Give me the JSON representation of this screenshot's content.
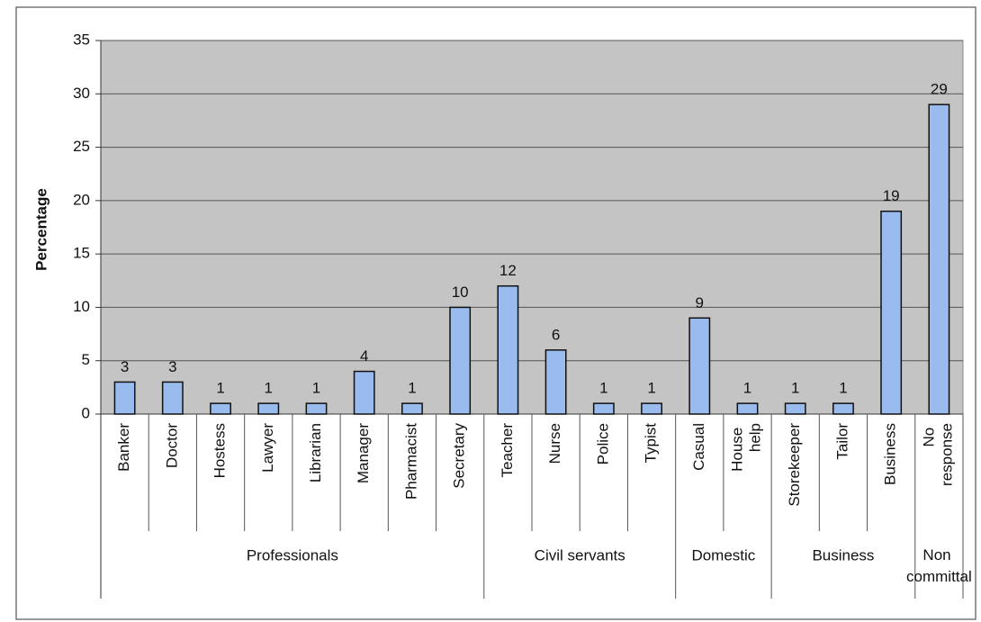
{
  "chart_data": {
    "type": "bar",
    "ylabel": "Percentage",
    "color": "#99bbee",
    "ylim": [
      0,
      35
    ],
    "yticks": [
      0,
      5,
      10,
      15,
      20,
      25,
      30,
      35
    ],
    "grid": true,
    "groups": [
      {
        "name": "Professionals",
        "categories": [
          "Banker",
          "Doctor",
          "Hostess",
          "Lawyer",
          "Librarian",
          "Manager",
          "Pharmacist",
          "Secretary"
        ],
        "values": [
          3,
          3,
          1,
          1,
          1,
          4,
          1,
          10
        ]
      },
      {
        "name": "Civil servants",
        "categories": [
          "Teacher",
          "Nurse",
          "Police",
          "Typist"
        ],
        "values": [
          12,
          6,
          1,
          1
        ]
      },
      {
        "name": "Domestic",
        "categories": [
          "Casual",
          "House help"
        ],
        "values": [
          9,
          1
        ]
      },
      {
        "name": "Business",
        "categories": [
          "Storekeeper",
          "Tailor",
          "Business"
        ],
        "values": [
          1,
          1,
          19
        ]
      },
      {
        "name": "Non committal",
        "categories": [
          "No response"
        ],
        "values": [
          29
        ]
      }
    ]
  }
}
